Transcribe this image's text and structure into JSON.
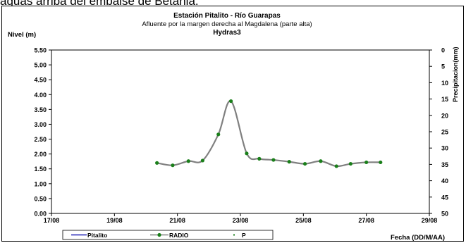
{
  "banner_text": "aguas arriba del embalse de Betania.",
  "chart_data": {
    "type": "line",
    "title": "Estación Pitalito  - Río Guarapas",
    "subtitle": "Afluente por la margen derecha al Magdalena (parte alta)",
    "subtitle2": "Hydras3",
    "ylabel": "Nivel (m)",
    "y2label": "Precipitacion(mm)",
    "xlabel": "Fecha (DD/M/AA)",
    "x_ticks": [
      "17/08",
      "19/08",
      "21/08",
      "23/08",
      "25/08",
      "27/08",
      "29/08"
    ],
    "y_ticks": [
      "0.00",
      "0.50",
      "1.00",
      "1.50",
      "2.00",
      "2.50",
      "3.00",
      "3.50",
      "4.00",
      "4.50",
      "5.00",
      "5.50"
    ],
    "y2_ticks": [
      "0",
      "5",
      "10",
      "15",
      "20",
      "25",
      "30",
      "35",
      "40",
      "45",
      "50"
    ],
    "xlim": [
      0,
      12
    ],
    "ylim": [
      0,
      5.5
    ],
    "y2lim": [
      0,
      50
    ],
    "y2_inverted": true,
    "grid": false,
    "legend_position": "bottom",
    "series": [
      {
        "name": "Pitalito",
        "color": "#1f1fb4",
        "style": "line",
        "x": [],
        "y": []
      },
      {
        "name": "RADIO",
        "color": "#808080",
        "marker_color": "#1a7f1a",
        "style": "line-marker",
        "x": [
          3.35,
          3.85,
          4.35,
          4.8,
          5.3,
          5.7,
          6.2,
          6.6,
          7.05,
          7.55,
          8.05,
          8.55,
          9.05,
          9.5,
          10.0,
          10.45
        ],
        "y": [
          1.7,
          1.62,
          1.76,
          1.78,
          2.66,
          3.78,
          2.02,
          1.84,
          1.8,
          1.74,
          1.67,
          1.76,
          1.59,
          1.67,
          1.72,
          1.72
        ]
      },
      {
        "name": "P",
        "color": "#1a7f1a",
        "style": "marker",
        "x": [],
        "y": []
      }
    ]
  }
}
